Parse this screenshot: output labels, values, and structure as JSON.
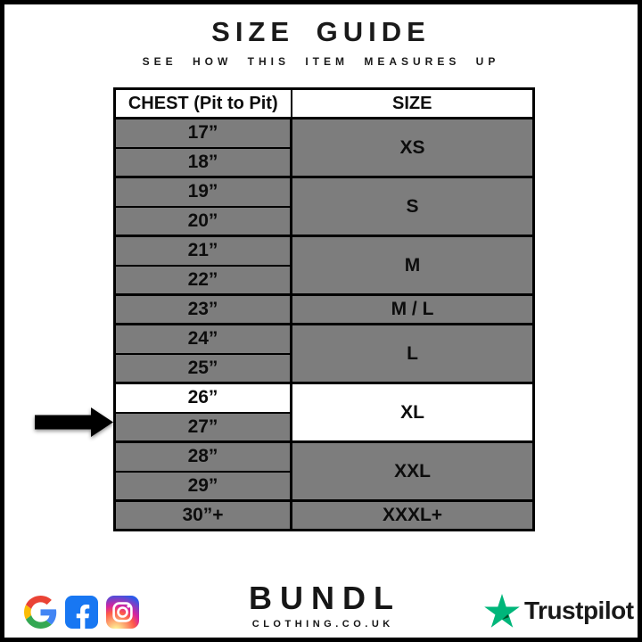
{
  "title": "SIZE GUIDE",
  "subtitle": "SEE HOW THIS ITEM MEASURES UP",
  "table": {
    "headers": [
      "CHEST (Pit to Pit)",
      "SIZE"
    ],
    "groups": [
      {
        "size": "XS",
        "size_highlighted": false,
        "rows": [
          {
            "chest": "17”",
            "highlighted": false
          },
          {
            "chest": "18”",
            "highlighted": false
          }
        ]
      },
      {
        "size": "S",
        "size_highlighted": false,
        "rows": [
          {
            "chest": "19”",
            "highlighted": false
          },
          {
            "chest": "20”",
            "highlighted": false
          }
        ]
      },
      {
        "size": "M",
        "size_highlighted": false,
        "rows": [
          {
            "chest": "21”",
            "highlighted": false
          },
          {
            "chest": "22”",
            "highlighted": false
          }
        ]
      },
      {
        "size": "M / L",
        "size_highlighted": false,
        "rows": [
          {
            "chest": "23”",
            "highlighted": false
          }
        ]
      },
      {
        "size": "L",
        "size_highlighted": false,
        "rows": [
          {
            "chest": "24”",
            "highlighted": false
          },
          {
            "chest": "25”",
            "highlighted": false
          }
        ]
      },
      {
        "size": "XL",
        "size_highlighted": true,
        "rows": [
          {
            "chest": "26”",
            "highlighted": true
          },
          {
            "chest": "27”",
            "highlighted": false
          }
        ]
      },
      {
        "size": "XXL",
        "size_highlighted": false,
        "rows": [
          {
            "chest": "28”",
            "highlighted": false
          },
          {
            "chest": "29”",
            "highlighted": false
          }
        ]
      },
      {
        "size": "XXXL+",
        "size_highlighted": false,
        "rows": [
          {
            "chest": "30”+",
            "highlighted": false
          }
        ]
      }
    ]
  },
  "arrow": {
    "target_chest": "26”"
  },
  "footer": {
    "brand_name": "BUNDL",
    "brand_domain": "CLOTHING.CO.UK",
    "trustpilot_label": "Trustpilot",
    "social_icons": [
      "google",
      "facebook",
      "instagram"
    ]
  },
  "colors": {
    "cell_gray": "#7d7d7d",
    "highlight_white": "#ffffff",
    "border_black": "#000000",
    "facebook_blue": "#1877f2",
    "trustpilot_green": "#00b67a",
    "trustpilot_dark_green": "#005128",
    "google_blue": "#4285f4",
    "google_red": "#ea4335",
    "google_yellow": "#fbbc05",
    "google_green": "#34a853"
  },
  "chart_data": {
    "type": "table",
    "title": "SIZE GUIDE",
    "subtitle": "SEE HOW THIS ITEM MEASURES UP",
    "columns": [
      "CHEST (Pit to Pit)",
      "SIZE"
    ],
    "rows": [
      [
        "17”",
        "XS"
      ],
      [
        "18”",
        "XS"
      ],
      [
        "19”",
        "S"
      ],
      [
        "20”",
        "S"
      ],
      [
        "21”",
        "M"
      ],
      [
        "22”",
        "M"
      ],
      [
        "23”",
        "M / L"
      ],
      [
        "24”",
        "L"
      ],
      [
        "25”",
        "L"
      ],
      [
        "26”",
        "XL"
      ],
      [
        "27”",
        "XL"
      ],
      [
        "28”",
        "XXL"
      ],
      [
        "29”",
        "XXL"
      ],
      [
        "30”+",
        "XXXL+"
      ]
    ],
    "highlighted_row": [
      "26”",
      "XL"
    ],
    "annotations": [
      "arrow pointing at 26” / XL row"
    ]
  }
}
